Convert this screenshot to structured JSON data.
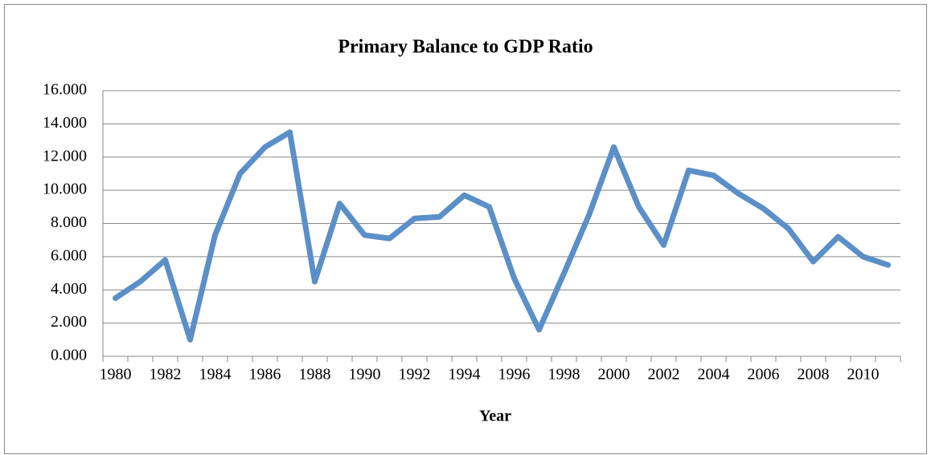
{
  "chart_data": {
    "type": "line",
    "title": "Primary Balance to GDP Ratio",
    "x_label": "Year",
    "categories": [
      "1980",
      null,
      "1982",
      null,
      "1984",
      null,
      "1986",
      null,
      "1988",
      null,
      "1990",
      null,
      "1992",
      null,
      "1994",
      null,
      "1996",
      null,
      "1998",
      null,
      "2000",
      null,
      "2002",
      null,
      "2004",
      null,
      "2006",
      null,
      "2008",
      null,
      "2010",
      null
    ],
    "values": [
      3.5,
      4.5,
      5.8,
      1.0,
      7.3,
      11.0,
      12.6,
      13.5,
      4.5,
      9.2,
      7.3,
      7.1,
      8.3,
      8.4,
      9.7,
      9.0,
      4.7,
      1.6,
      5.0,
      8.5,
      12.6,
      9.0,
      6.7,
      11.2,
      10.9,
      9.8,
      8.9,
      7.7,
      5.7,
      7.2,
      6.0,
      5.5
    ],
    "color": "#5b8fc8",
    "ylim": [
      0,
      16
    ],
    "yticks": [
      {
        "value": 0,
        "label": "0.000"
      },
      {
        "value": 2,
        "label": "2.000"
      },
      {
        "value": 4,
        "label": "4.000"
      },
      {
        "value": 6,
        "label": "6.000"
      },
      {
        "value": 8,
        "label": "8.000"
      },
      {
        "value": 10,
        "label": "10.000"
      },
      {
        "value": 12,
        "label": "12.000"
      },
      {
        "value": 14,
        "label": "14.000"
      },
      {
        "value": 16,
        "label": "16.000"
      }
    ],
    "grid": true
  }
}
